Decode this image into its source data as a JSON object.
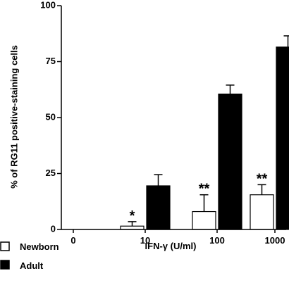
{
  "chart_data": {
    "type": "bar",
    "xlabel": "IFN-γ (U/ml)",
    "ylabel": "% of RG11 positive-staining cells",
    "categories": [
      "0",
      "10",
      "100",
      "1000"
    ],
    "ylim": [
      0,
      100
    ],
    "yticks": [
      "0",
      "25",
      "50",
      "75",
      "100"
    ],
    "series": [
      {
        "name": "Newborn",
        "color": "#ffffff",
        "values": [
          0,
          1.5,
          8,
          15.5
        ],
        "errors": [
          0,
          2,
          7.5,
          4.5
        ],
        "significance": [
          "",
          "*",
          "**",
          "**"
        ]
      },
      {
        "name": "Adult",
        "color": "#000000",
        "values": [
          0,
          19.5,
          60.5,
          81.5
        ],
        "errors": [
          0,
          5,
          4,
          5
        ]
      }
    ],
    "grid": false,
    "legend_position": "bottom-left"
  }
}
